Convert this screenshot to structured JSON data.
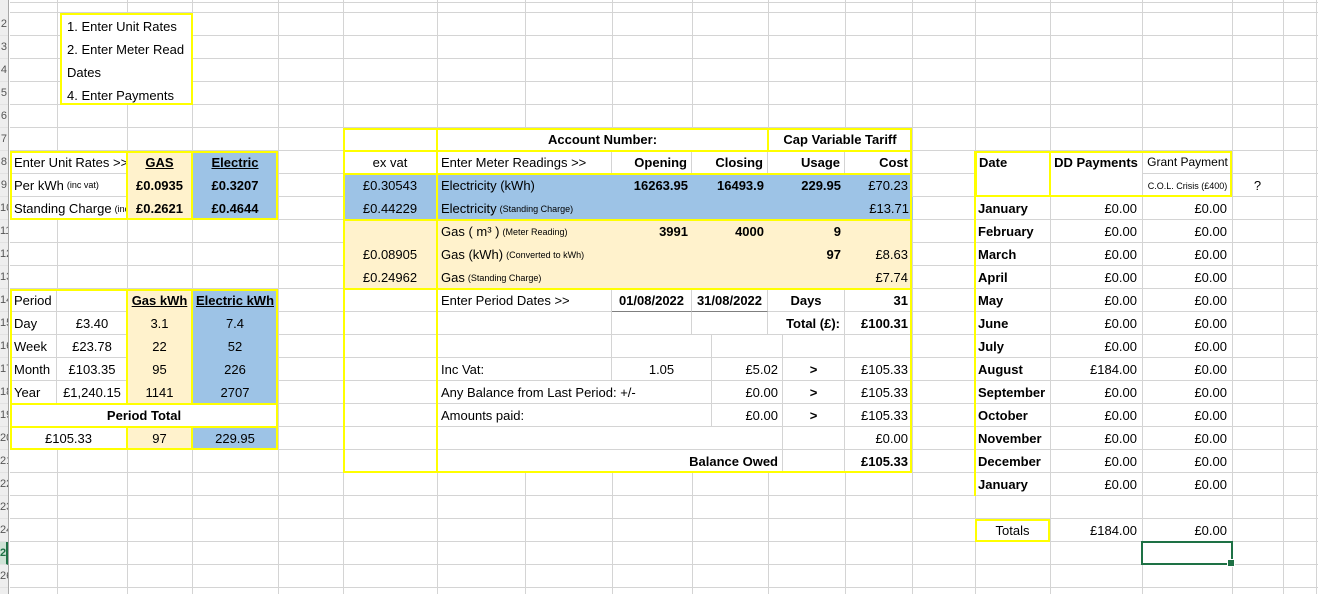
{
  "sheet": {
    "row_numbers": [
      "2",
      "3",
      "4",
      "5",
      "6",
      "7",
      "8",
      "9",
      "10",
      "11",
      "12",
      "13",
      "14",
      "15",
      "16",
      "17",
      "18",
      "19",
      "20",
      "21",
      "22",
      "23",
      "24",
      "25",
      "26"
    ],
    "selected_row": "25"
  },
  "colors": {
    "gas_fill": "#FFF2CC",
    "electric_fill": "#9DC3E6",
    "table_border": "#FFFF00",
    "selection_green": "#1E7145"
  },
  "instructions": {
    "lines": [
      "1. Enter Unit Rates",
      "2. Enter Meter Read",
      "Dates",
      "4. Enter Payments"
    ]
  },
  "unit_rates": {
    "title": "Enter Unit Rates >>",
    "gas_header": "GAS",
    "electric_header": "Electric",
    "rows": [
      {
        "label": "Per kWh",
        "note": "(inc vat)",
        "gas": "£0.0935",
        "electric": "£0.3207"
      },
      {
        "label": "Standing Charge",
        "note": "(inc",
        "gas": "£0.2621",
        "electric": "£0.4644"
      }
    ]
  },
  "period": {
    "header": "Period",
    "gas_header": "Gas kWh",
    "electric_header": "Electric kWh",
    "rows": [
      {
        "label": "Day",
        "cost": "£3.40",
        "gas": "3.1",
        "electric": "7.4"
      },
      {
        "label": "Week",
        "cost": "£23.78",
        "gas": "22",
        "electric": "52"
      },
      {
        "label": "Month",
        "cost": "£103.35",
        "gas": "95",
        "electric": "226"
      },
      {
        "label": "Year",
        "cost": "£1,240.15",
        "gas": "1141",
        "electric": "2707"
      }
    ],
    "total_label": "Period Total",
    "total_cost": "£105.33",
    "total_gas": "97",
    "total_electric": "229.95"
  },
  "bill": {
    "account_label": "Account Number:",
    "tariff_label": "Cap Variable Tariff",
    "ex_vat_label": "ex vat",
    "readings_label": "Enter Meter Readings >>",
    "opening_label": "Opening",
    "closing_label": "Closing",
    "usage_label": "Usage",
    "cost_label": "Cost",
    "rows": {
      "elec_kwh": {
        "ex_vat": "£0.30543",
        "label": "Electricity (kWh)",
        "opening": "16263.95",
        "closing": "16493.9",
        "usage": "229.95",
        "cost": "£70.23"
      },
      "elec_standing": {
        "ex_vat": "£0.44229",
        "label": "Electricity",
        "note": "(Standing Charge)",
        "cost": "£13.71"
      },
      "gas_m3": {
        "label": "Gas ( m³ )",
        "note": "(Meter Reading)",
        "opening": "3991",
        "closing": "4000",
        "usage": "9"
      },
      "gas_kwh": {
        "ex_vat": "£0.08905",
        "label": "Gas (kWh)",
        "note": "(Converted to kWh)",
        "usage": "97",
        "cost": "£8.63"
      },
      "gas_standing": {
        "ex_vat": "£0.24962",
        "label": "Gas",
        "note": "(Standing Charge)",
        "cost": "£7.74"
      }
    },
    "period_dates": {
      "label": "Enter Period Dates >>",
      "start": "01/08/2022",
      "end": "31/08/2022",
      "days_label": "Days",
      "days": "31"
    },
    "total": {
      "label": "Total (£):",
      "value": "£100.31"
    },
    "vat": {
      "label": "Inc Vat:",
      "factor": "1.05",
      "amount": "£5.02",
      "arrow": ">",
      "running": "£105.33"
    },
    "balance_last": {
      "label": "Any Balance from Last Period:  +/-",
      "amount": "£0.00",
      "arrow": ">",
      "running": "£105.33"
    },
    "amounts_paid": {
      "label": "Amounts paid:",
      "amount": "£0.00",
      "arrow": ">",
      "running": "£105.33"
    },
    "adjustment": {
      "value": "£0.00"
    },
    "balance_owed": {
      "label": "Balance Owed",
      "value": "£105.33"
    }
  },
  "payments": {
    "date_header": "Date",
    "dd_header": "DD Payments",
    "grant_header": "Grant Payment",
    "grant_subheader": "C.O.L. Crisis (£400)",
    "question_mark": "?",
    "months": [
      {
        "month": "January",
        "dd": "£0.00",
        "grant": "£0.00"
      },
      {
        "month": "February",
        "dd": "£0.00",
        "grant": "£0.00"
      },
      {
        "month": "March",
        "dd": "£0.00",
        "grant": "£0.00"
      },
      {
        "month": "April",
        "dd": "£0.00",
        "grant": "£0.00"
      },
      {
        "month": "May",
        "dd": "£0.00",
        "grant": "£0.00"
      },
      {
        "month": "June",
        "dd": "£0.00",
        "grant": "£0.00"
      },
      {
        "month": "July",
        "dd": "£0.00",
        "grant": "£0.00"
      },
      {
        "month": "August",
        "dd": "£184.00",
        "grant": "£0.00"
      },
      {
        "month": "September",
        "dd": "£0.00",
        "grant": "£0.00"
      },
      {
        "month": "October",
        "dd": "£0.00",
        "grant": "£0.00"
      },
      {
        "month": "November",
        "dd": "£0.00",
        "grant": "£0.00"
      },
      {
        "month": "December",
        "dd": "£0.00",
        "grant": "£0.00"
      },
      {
        "month": "January",
        "dd": "£0.00",
        "grant": "£0.00"
      }
    ],
    "totals": {
      "label": "Totals",
      "dd": "£184.00",
      "grant": "£0.00"
    }
  }
}
